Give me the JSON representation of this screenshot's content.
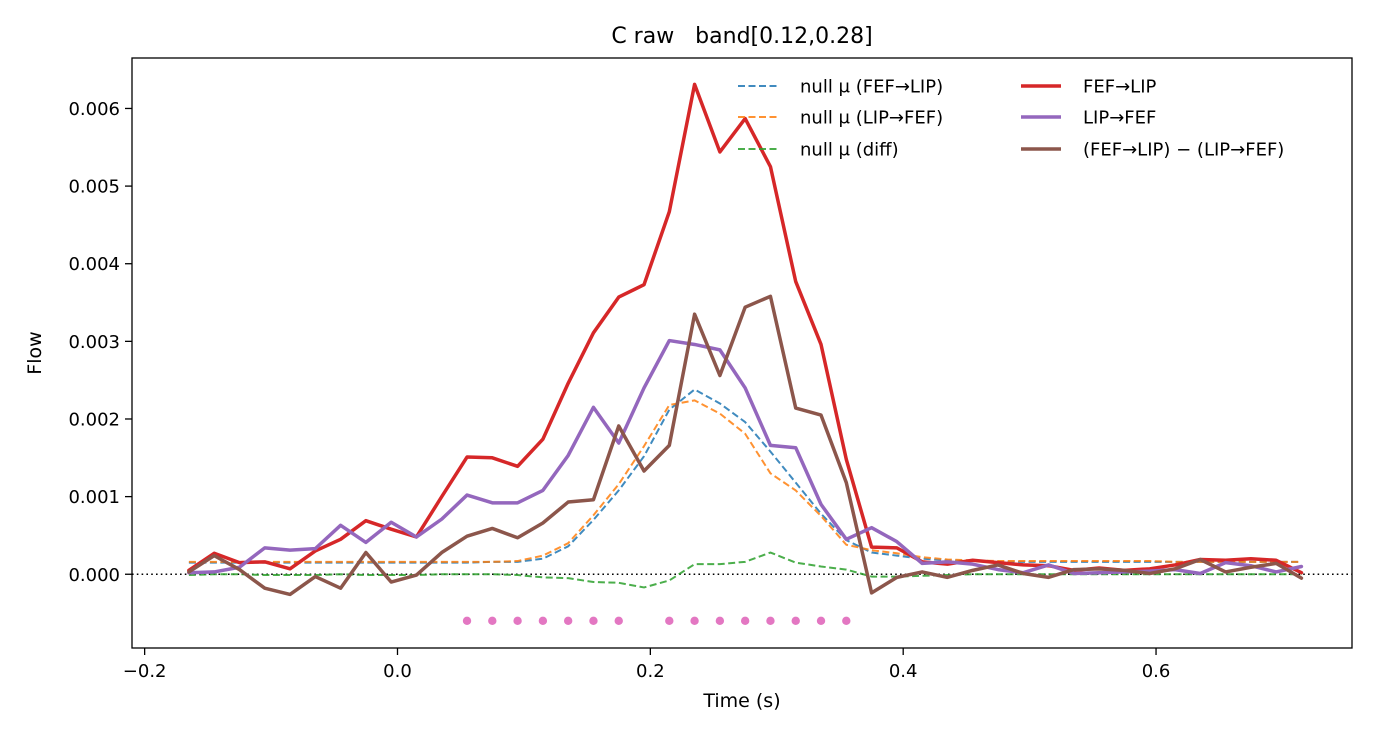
{
  "chart_data": {
    "type": "line",
    "title": "C raw   band[0.12,0.28]",
    "xlabel": "Time (s)",
    "ylabel": "Flow",
    "xlim": [
      -0.21,
      0.755
    ],
    "ylim": [
      -0.00095,
      0.00665
    ],
    "xticks": [
      -0.2,
      0.0,
      0.2,
      0.4,
      0.6
    ],
    "xtick_labels": [
      "−0.2",
      "0.0",
      "0.2",
      "0.4",
      "0.6"
    ],
    "yticks": [
      0.0,
      0.001,
      0.002,
      0.003,
      0.004,
      0.005,
      0.006
    ],
    "ytick_labels": [
      "0.000",
      "0.001",
      "0.002",
      "0.003",
      "0.004",
      "0.005",
      "0.006"
    ],
    "grid": false,
    "legend_position": "top-right",
    "zero_line": {
      "y": 0,
      "style": "dotted",
      "color": "#000000"
    },
    "x": [
      -0.165,
      -0.145,
      -0.125,
      -0.105,
      -0.085,
      -0.065,
      -0.045,
      -0.025,
      -0.005,
      0.015,
      0.035,
      0.055,
      0.075,
      0.095,
      0.115,
      0.135,
      0.155,
      0.175,
      0.195,
      0.215,
      0.235,
      0.255,
      0.275,
      0.295,
      0.315,
      0.335,
      0.355,
      0.375,
      0.395,
      0.415,
      0.435,
      0.455,
      0.475,
      0.495,
      0.515,
      0.535,
      0.555,
      0.575,
      0.595,
      0.615,
      0.635,
      0.655,
      0.675,
      0.695,
      0.715
    ],
    "series": [
      {
        "name": "null μ (FEF→LIP)",
        "color": "#1f77b4",
        "style": "dashed",
        "width": 2,
        "opacity": 0.85,
        "values": [
          0.00015,
          0.00015,
          0.00015,
          0.00015,
          0.00015,
          0.00015,
          0.00015,
          0.00015,
          0.00015,
          0.00015,
          0.00015,
          0.00015,
          0.00016,
          0.00016,
          0.0002,
          0.00036,
          0.0007,
          0.00108,
          0.00152,
          0.00212,
          0.00238,
          0.0022,
          0.00196,
          0.00158,
          0.00118,
          0.00078,
          0.00044,
          0.00028,
          0.00024,
          0.0002,
          0.00018,
          0.00017,
          0.00016,
          0.00016,
          0.00016,
          0.00016,
          0.00016,
          0.00016,
          0.00016,
          0.00016,
          0.00016,
          0.00016,
          0.00016,
          0.00016,
          0.00016
        ]
      },
      {
        "name": "null μ (LIP→FEF)",
        "color": "#ff7f0e",
        "style": "dashed",
        "width": 2,
        "opacity": 0.85,
        "values": [
          0.00016,
          0.00016,
          0.00016,
          0.00016,
          0.00016,
          0.00016,
          0.00016,
          0.00016,
          0.00016,
          0.00016,
          0.00016,
          0.00016,
          0.00016,
          0.00017,
          0.00024,
          0.0004,
          0.00076,
          0.00116,
          0.00165,
          0.00218,
          0.00224,
          0.00207,
          0.00181,
          0.0013,
          0.00108,
          0.00075,
          0.00038,
          0.00031,
          0.00027,
          0.00022,
          0.00019,
          0.00018,
          0.00017,
          0.00017,
          0.00017,
          0.00017,
          0.00017,
          0.00017,
          0.00017,
          0.00016,
          0.00016,
          0.00016,
          0.00016,
          0.00016,
          0.00016
        ]
      },
      {
        "name": "null μ (diff)",
        "color": "#2ca02c",
        "style": "dashed",
        "width": 2,
        "opacity": 0.85,
        "values": [
          -1e-05,
          0.0,
          0.0,
          -1e-05,
          -1e-05,
          -1e-05,
          0.0,
          -1e-05,
          -1e-05,
          -1e-05,
          0.0,
          0.0,
          0.0,
          -1e-05,
          -4e-05,
          -5e-05,
          -0.0001,
          -0.00011,
          -0.00017,
          -8e-05,
          0.00013,
          0.00013,
          0.00016,
          0.00028,
          0.00015,
          0.0001,
          6e-05,
          -3e-05,
          -3e-05,
          -2e-05,
          -1e-05,
          0.0,
          0.0,
          0.0,
          0.0,
          0.0,
          0.0,
          0.0,
          0.0,
          0.0,
          0.0,
          0.0,
          0.0,
          0.0,
          0.0
        ]
      },
      {
        "name": "FEF→LIP",
        "color": "#d62728",
        "style": "solid",
        "width": 3.5,
        "values": [
          5e-05,
          0.00027,
          0.00015,
          0.00016,
          7e-05,
          0.0003,
          0.00045,
          0.00069,
          0.00058,
          0.00048,
          0.001,
          0.00151,
          0.0015,
          0.00139,
          0.00174,
          0.00246,
          0.00311,
          0.00357,
          0.00373,
          0.00467,
          0.00631,
          0.00544,
          0.00587,
          0.00525,
          0.00377,
          0.00296,
          0.00148,
          0.00035,
          0.00034,
          0.00016,
          0.00013,
          0.00018,
          0.00015,
          0.00012,
          0.00011,
          5e-05,
          8e-05,
          5e-05,
          7e-05,
          0.00012,
          0.00019,
          0.00018,
          0.0002,
          0.00018,
          2e-05
        ]
      },
      {
        "name": "LIP→FEF",
        "color": "#9467bd",
        "style": "solid",
        "width": 3.5,
        "values": [
          2e-05,
          3e-05,
          9e-05,
          0.00034,
          0.00031,
          0.00033,
          0.00063,
          0.00041,
          0.00067,
          0.00048,
          0.00071,
          0.00102,
          0.00092,
          0.00092,
          0.00108,
          0.00153,
          0.00215,
          0.00169,
          0.0024,
          0.00301,
          0.00296,
          0.00289,
          0.0024,
          0.00166,
          0.00163,
          0.0009,
          0.00045,
          0.0006,
          0.00042,
          0.00014,
          0.00016,
          0.00013,
          6e-05,
          2e-05,
          0.00012,
          1e-05,
          2e-05,
          3e-05,
          4e-05,
          6e-05,
          1e-05,
          0.00015,
          0.00011,
          3e-05,
          0.0001
        ]
      },
      {
        "name": "(FEF→LIP) − (LIP→FEF)",
        "color": "#8c564b",
        "style": "solid",
        "width": 3.5,
        "values": [
          3e-05,
          0.00024,
          6e-05,
          -0.00018,
          -0.00026,
          -3e-05,
          -0.00018,
          0.00028,
          -0.0001,
          -1e-05,
          0.00028,
          0.00049,
          0.00059,
          0.00047,
          0.00066,
          0.00093,
          0.00096,
          0.00191,
          0.00133,
          0.00166,
          0.00335,
          0.00256,
          0.00344,
          0.00358,
          0.00214,
          0.00205,
          0.00118,
          -0.00024,
          -4e-05,
          3e-05,
          -4e-05,
          5e-05,
          0.00012,
          1e-05,
          -4e-05,
          6e-05,
          7e-05,
          5e-05,
          1e-05,
          7e-05,
          0.00019,
          3e-05,
          9e-05,
          0.00014,
          -5e-05
        ]
      }
    ],
    "significance_markers": {
      "color": "#e377c2",
      "y": -0.0006,
      "x": [
        0.055,
        0.075,
        0.095,
        0.115,
        0.135,
        0.155,
        0.175,
        0.215,
        0.235,
        0.255,
        0.275,
        0.295,
        0.315,
        0.335,
        0.355
      ]
    }
  }
}
